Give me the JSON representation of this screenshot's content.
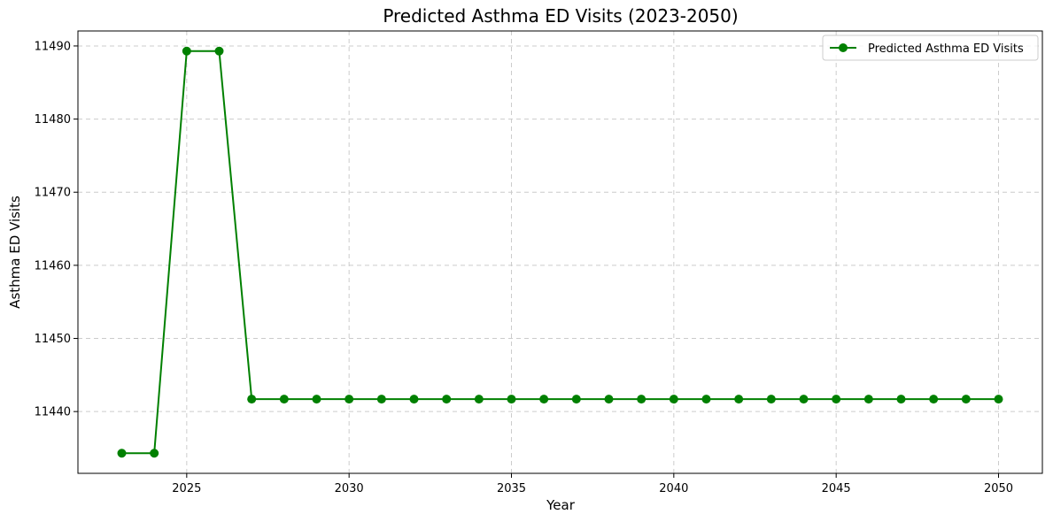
{
  "chart_data": {
    "type": "line",
    "title": "Predicted Asthma ED Visits (2023-2050)",
    "xlabel": "Year",
    "ylabel": "Asthma ED Visits",
    "x": [
      2023,
      2024,
      2025,
      2026,
      2027,
      2028,
      2029,
      2030,
      2031,
      2032,
      2033,
      2034,
      2035,
      2036,
      2037,
      2038,
      2039,
      2040,
      2041,
      2042,
      2043,
      2044,
      2045,
      2046,
      2047,
      2048,
      2049,
      2050
    ],
    "series": [
      {
        "name": "Predicted Asthma ED Visits",
        "color": "#008000",
        "marker": "circle",
        "values": [
          11434.3,
          11434.3,
          11489.3,
          11489.3,
          11441.7,
          11441.7,
          11441.7,
          11441.7,
          11441.7,
          11441.7,
          11441.7,
          11441.7,
          11441.7,
          11441.7,
          11441.7,
          11441.7,
          11441.7,
          11441.7,
          11441.7,
          11441.7,
          11441.7,
          11441.7,
          11441.7,
          11441.7,
          11441.7,
          11441.7,
          11441.7,
          11441.7
        ]
      }
    ],
    "xlim": [
      2021.65,
      2051.35
    ],
    "ylim": [
      11431.55,
      11492.05
    ],
    "xticks": [
      2025,
      2030,
      2035,
      2040,
      2045,
      2050
    ],
    "yticks": [
      11440,
      11450,
      11460,
      11470,
      11480,
      11490
    ],
    "grid": true,
    "grid_style": "dashed",
    "legend_position": "top-right"
  }
}
